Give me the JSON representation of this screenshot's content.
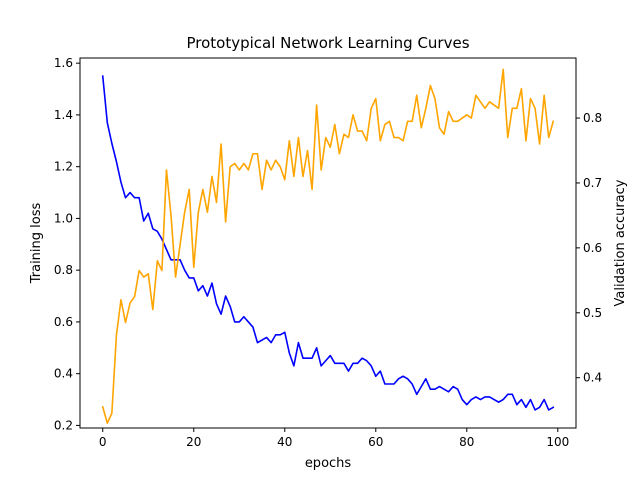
{
  "chart_data": {
    "type": "line",
    "title": "Prototypical Network Learning Curves",
    "xlabel": "epochs",
    "ylabel_left": "Training loss",
    "ylabel_right": "Validation accuracy",
    "xlim": [
      -5,
      104
    ],
    "ylim_left": [
      0.19,
      1.62
    ],
    "ylim_right": [
      0.3225,
      0.8925
    ],
    "x_ticks": [
      0,
      20,
      40,
      60,
      80,
      100
    ],
    "y_ticks_left": [
      0.2,
      0.4,
      0.6,
      0.8,
      1.0,
      1.2,
      1.4,
      1.6
    ],
    "y_ticks_left_labels": [
      "0.2",
      "0.4",
      "0.6",
      "0.8",
      "1.0",
      "1.2",
      "1.4",
      "1.6"
    ],
    "y_ticks_right": [
      0.4,
      0.5,
      0.6,
      0.7,
      0.8
    ],
    "y_ticks_right_labels": [
      "0.4",
      "0.5",
      "0.6",
      "0.7",
      "0.8"
    ],
    "grid": false,
    "colors": {
      "loss": "#0000ff",
      "accuracy": "#ffa500"
    },
    "series": [
      {
        "axis": "left",
        "color": "#0000ff",
        "values": [
          1.55,
          1.37,
          1.29,
          1.22,
          1.14,
          1.08,
          1.1,
          1.08,
          1.08,
          0.99,
          1.02,
          0.96,
          0.95,
          0.92,
          0.88,
          0.84,
          0.84,
          0.84,
          0.8,
          0.77,
          0.77,
          0.72,
          0.74,
          0.7,
          0.75,
          0.67,
          0.63,
          0.7,
          0.66,
          0.6,
          0.6,
          0.62,
          0.6,
          0.58,
          0.52,
          0.53,
          0.54,
          0.52,
          0.55,
          0.55,
          0.56,
          0.48,
          0.43,
          0.52,
          0.46,
          0.46,
          0.46,
          0.5,
          0.43,
          0.45,
          0.47,
          0.44,
          0.44,
          0.44,
          0.41,
          0.44,
          0.44,
          0.46,
          0.45,
          0.43,
          0.39,
          0.41,
          0.36,
          0.36,
          0.36,
          0.38,
          0.39,
          0.38,
          0.36,
          0.32,
          0.35,
          0.38,
          0.34,
          0.34,
          0.35,
          0.34,
          0.33,
          0.35,
          0.34,
          0.3,
          0.28,
          0.3,
          0.31,
          0.3,
          0.31,
          0.31,
          0.3,
          0.29,
          0.3,
          0.32,
          0.32,
          0.28,
          0.3,
          0.27,
          0.3,
          0.26,
          0.27,
          0.3,
          0.26,
          0.27
        ]
      },
      {
        "axis": "right",
        "color": "#ffa500",
        "values": [
          0.355,
          0.33,
          0.345,
          0.465,
          0.52,
          0.485,
          0.515,
          0.525,
          0.565,
          0.555,
          0.56,
          0.505,
          0.58,
          0.565,
          0.72,
          0.65,
          0.555,
          0.605,
          0.655,
          0.69,
          0.57,
          0.655,
          0.69,
          0.655,
          0.71,
          0.67,
          0.76,
          0.64,
          0.725,
          0.73,
          0.72,
          0.73,
          0.72,
          0.745,
          0.745,
          0.69,
          0.735,
          0.72,
          0.735,
          0.725,
          0.705,
          0.765,
          0.71,
          0.77,
          0.71,
          0.75,
          0.69,
          0.82,
          0.72,
          0.77,
          0.755,
          0.79,
          0.745,
          0.775,
          0.77,
          0.805,
          0.78,
          0.78,
          0.765,
          0.815,
          0.83,
          0.765,
          0.79,
          0.795,
          0.77,
          0.77,
          0.765,
          0.795,
          0.795,
          0.835,
          0.785,
          0.815,
          0.85,
          0.83,
          0.785,
          0.775,
          0.81,
          0.795,
          0.795,
          0.8,
          0.805,
          0.8,
          0.835,
          0.825,
          0.815,
          0.825,
          0.82,
          0.815,
          0.875,
          0.77,
          0.815,
          0.815,
          0.845,
          0.765,
          0.83,
          0.815,
          0.76,
          0.835,
          0.77,
          0.795
        ]
      }
    ]
  }
}
